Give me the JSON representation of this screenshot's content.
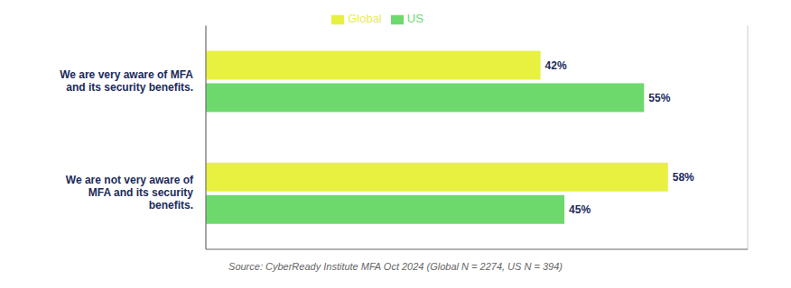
{
  "chart_data": {
    "type": "bar",
    "orientation": "horizontal",
    "categories": [
      "We are very aware of MFA\nand its security benefits.",
      "We are not very aware of\nMFA and its security\nbenefits."
    ],
    "series": [
      {
        "name": "Global",
        "color": "#E8F040",
        "values": [
          42,
          58
        ],
        "value_labels": [
          "42%",
          "58%"
        ]
      },
      {
        "name": "US",
        "color": "#6DD96D",
        "values": [
          55,
          45
        ],
        "value_labels": [
          "55%",
          "45%"
        ]
      }
    ],
    "xlim": [
      0,
      68
    ],
    "xticks": [
      10,
      20,
      30,
      40,
      50,
      60
    ],
    "grid": true,
    "legend": "top",
    "data_labels": true,
    "tick_labels": "y",
    "annotations": [
      "Source: CyberReady Institute MFA Oct 2024 (Global N = 2274, US N = 394)"
    ]
  }
}
